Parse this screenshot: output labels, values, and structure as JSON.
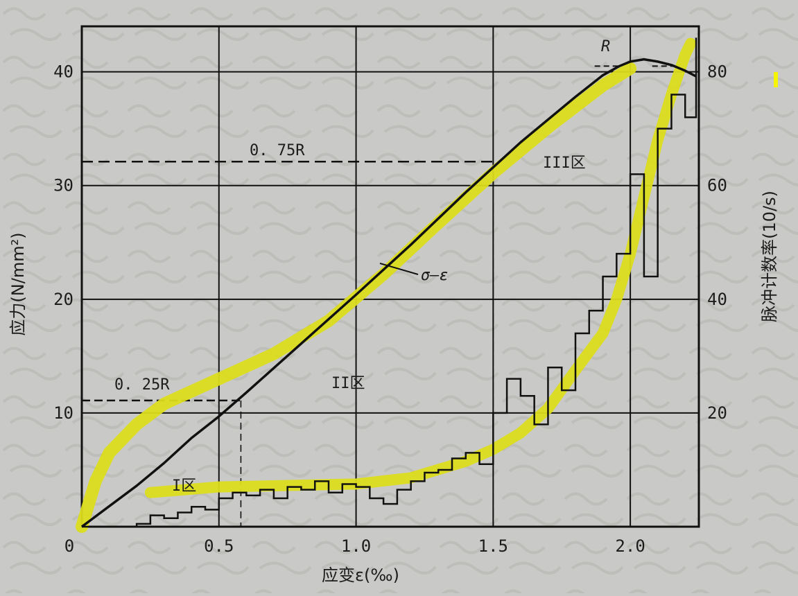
{
  "chart_data": {
    "type": "line",
    "xlabel": "应变ε(‰)",
    "ylabel": "应力(N/mm²)",
    "y2label": "脉冲计数率(10/s)",
    "xlim": [
      0,
      2.25
    ],
    "ylim": [
      0,
      44
    ],
    "y2lim": [
      0,
      88
    ],
    "x_ticks": [
      "0",
      "0.5",
      "1.0",
      "1.5",
      "2.0"
    ],
    "x_tick_values": [
      0,
      0.5,
      1.0,
      1.5,
      2.0
    ],
    "y_ticks": [
      "10",
      "20",
      "30",
      "40"
    ],
    "y_tick_values": [
      10,
      20,
      30,
      40
    ],
    "y2_ticks": [
      "20",
      "40",
      "60",
      "80"
    ],
    "y2_tick_values": [
      20,
      40,
      60,
      80
    ],
    "grid": true,
    "annotations": {
      "r_label": "R",
      "r75_label": "0. 75R",
      "r25_label": "0. 25R",
      "zone1": "I区",
      "zone2": "II区",
      "zone3": "III区",
      "sigma_eps": "σ—ε"
    },
    "reference_lines": {
      "r75": {
        "stress": 32.1,
        "strain": 1.5
      },
      "r25": {
        "stress": 11.1,
        "strain": 0.58
      },
      "peak_stress": 40.5
    },
    "stress_curve": {
      "x": [
        0,
        0.1,
        0.2,
        0.3,
        0.4,
        0.5,
        0.6,
        0.8,
        1.0,
        1.2,
        1.4,
        1.6,
        1.8,
        1.9,
        1.96,
        2.0,
        2.05,
        2.1,
        2.15,
        2.2,
        2.24
      ],
      "y": [
        0,
        1.8,
        3.6,
        5.6,
        7.8,
        9.7,
        11.8,
        16.1,
        20.4,
        24.8,
        29.4,
        33.8,
        37.8,
        39.7,
        40.5,
        40.9,
        41.1,
        40.9,
        40.6,
        40.1,
        39.6
      ]
    },
    "pulse_rate_steps": {
      "x": [
        0,
        0.2,
        0.25,
        0.3,
        0.35,
        0.4,
        0.45,
        0.5,
        0.55,
        0.6,
        0.65,
        0.7,
        0.75,
        0.8,
        0.85,
        0.9,
        0.95,
        1.0,
        1.05,
        1.1,
        1.15,
        1.2,
        1.25,
        1.3,
        1.35,
        1.4,
        1.45,
        1.5,
        1.55,
        1.6,
        1.65,
        1.7,
        1.75,
        1.8,
        1.85,
        1.9,
        1.95,
        2.0,
        2.05,
        2.1,
        2.15,
        2.2,
        2.24
      ],
      "y": [
        0,
        0.5,
        2,
        1.5,
        2.5,
        3.5,
        3,
        5,
        6,
        5.5,
        6.5,
        5,
        7,
        6.5,
        8,
        6,
        7.5,
        7,
        5,
        4,
        6.5,
        8,
        9.5,
        10,
        12,
        13,
        11,
        20,
        26,
        23,
        18,
        28,
        24,
        34,
        38,
        44,
        48,
        62,
        44,
        70,
        76,
        72,
        86
      ]
    },
    "highlight_stress": {
      "x": [
        0,
        0.05,
        0.1,
        0.2,
        0.3,
        0.5,
        0.7,
        0.9,
        1.1,
        1.3,
        1.5,
        1.7,
        1.9,
        2.0
      ],
      "y": [
        0,
        4,
        6.5,
        9,
        10.8,
        13,
        15.2,
        18.1,
        22.2,
        26.7,
        31.1,
        35.1,
        38.8,
        40.3
      ]
    },
    "highlight_pulse": {
      "x": [
        0.25,
        0.5,
        0.8,
        1.0,
        1.2,
        1.4,
        1.5,
        1.6,
        1.7,
        1.8,
        1.9,
        1.95,
        2.0,
        2.05,
        2.1,
        2.15,
        2.2,
        2.22
      ],
      "y": [
        6,
        7,
        7.3,
        7.5,
        8.6,
        11.5,
        13.6,
        16.5,
        20.8,
        27.5,
        34,
        40,
        48,
        58,
        68,
        76,
        83,
        85
      ]
    },
    "colors": {
      "background": "#c9cac7",
      "ink": "#111111",
      "highlight": "#dcdc1e",
      "marker": "#f4f404"
    }
  }
}
